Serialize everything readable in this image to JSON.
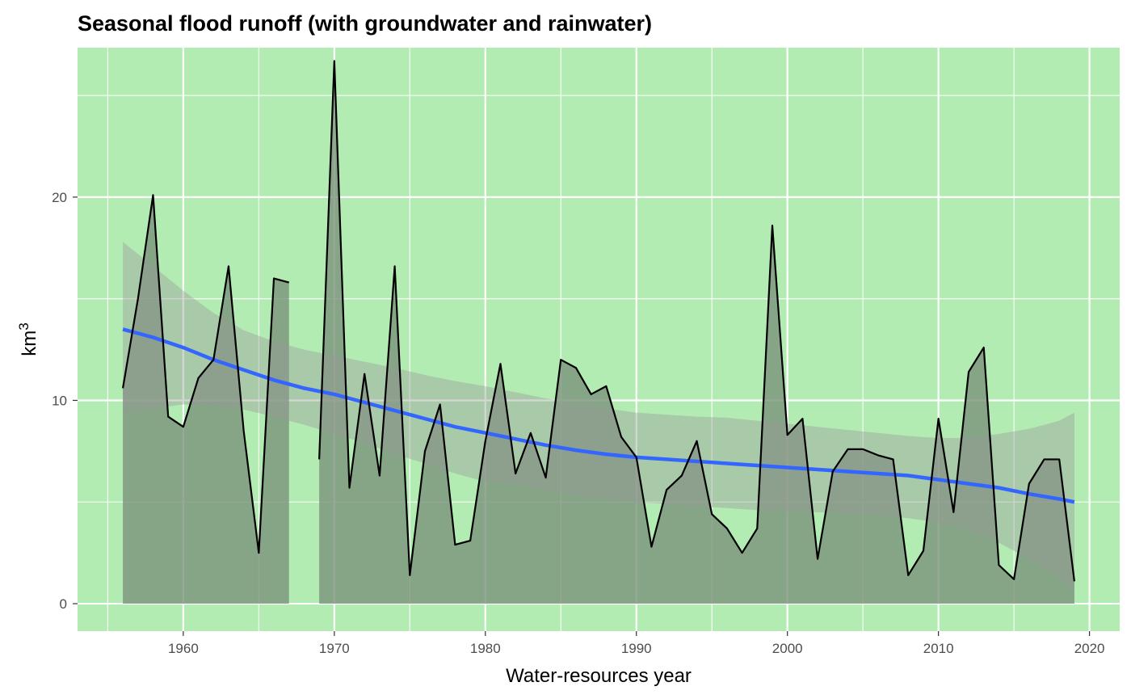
{
  "chart_data": {
    "type": "area",
    "title": "Seasonal flood runoff (with groundwater and rainwater)",
    "xlabel": "Water-resources year",
    "ylabel_base": "km",
    "ylabel_superscript": "3",
    "xlim": [
      1953,
      2022
    ],
    "ylim": [
      -1.35,
      27.35
    ],
    "x_ticks": [
      1960,
      1970,
      1980,
      1990,
      2000,
      2010,
      2020
    ],
    "y_ticks": [
      0,
      10,
      20
    ],
    "x_tick_labels": [
      "1960",
      "1970",
      "1980",
      "1990",
      "2000",
      "2010",
      "2020"
    ],
    "y_tick_labels": [
      "0",
      "10",
      "20"
    ],
    "grid": true,
    "legend": "none",
    "colors": {
      "panel_background": "#b3ecb3",
      "grid": "#ffffff",
      "area_fill": "#7a8f7a",
      "line": "#000000",
      "smooth_line": "#3366ff",
      "ribbon": "#999999",
      "tick": "#333333"
    },
    "series": [
      {
        "kind": "runoff",
        "x": [
          1956,
          1957,
          1958,
          1959,
          1960,
          1961,
          1962,
          1963,
          1964,
          1965,
          1966,
          1967,
          1968,
          1969,
          1970,
          1971,
          1972,
          1973,
          1974,
          1975,
          1976,
          1977,
          1978,
          1979,
          1980,
          1981,
          1982,
          1983,
          1984,
          1985,
          1986,
          1987,
          1988,
          1989,
          1990,
          1991,
          1992,
          1993,
          1994,
          1995,
          1996,
          1997,
          1998,
          1999,
          2000,
          2001,
          2002,
          2003,
          2004,
          2005,
          2006,
          2007,
          2008,
          2009,
          2010,
          2011,
          2012,
          2013,
          2014,
          2015,
          2016,
          2017,
          2018,
          2019
        ],
        "y": [
          10.6,
          15.0,
          20.1,
          9.2,
          8.7,
          11.1,
          12.0,
          16.6,
          8.5,
          2.5,
          16.0,
          15.8,
          null,
          7.1,
          26.7,
          5.7,
          11.3,
          6.3,
          16.6,
          1.4,
          7.5,
          9.8,
          2.9,
          3.1,
          8.0,
          11.8,
          6.4,
          8.4,
          6.2,
          12.0,
          11.6,
          10.3,
          10.7,
          8.2,
          7.2,
          2.8,
          5.6,
          6.3,
          8.0,
          4.4,
          3.7,
          2.5,
          3.7,
          18.6,
          8.3,
          9.1,
          2.2,
          6.5,
          7.6,
          7.6,
          7.3,
          7.1,
          1.4,
          2.6,
          9.1,
          4.5,
          11.4,
          12.6,
          1.9,
          1.2,
          5.9,
          7.1,
          7.1,
          1.1
        ]
      },
      {
        "kind": "smooth",
        "x": [
          1956,
          1958,
          1960,
          1962,
          1964,
          1966,
          1968,
          1970,
          1972,
          1974,
          1976,
          1978,
          1980,
          1982,
          1984,
          1986,
          1988,
          1990,
          1992,
          1994,
          1996,
          1998,
          2000,
          2002,
          2004,
          2006,
          2008,
          2010,
          2012,
          2014,
          2016,
          2018,
          2019
        ],
        "y": [
          13.5,
          13.1,
          12.6,
          12.0,
          11.5,
          11.0,
          10.6,
          10.3,
          9.9,
          9.5,
          9.1,
          8.7,
          8.4,
          8.1,
          7.8,
          7.55,
          7.35,
          7.2,
          7.1,
          7.0,
          6.9,
          6.8,
          6.7,
          6.6,
          6.5,
          6.4,
          6.3,
          6.1,
          5.9,
          5.7,
          5.4,
          5.15,
          5.0
        ],
        "lower": [
          9.3,
          9.6,
          9.8,
          9.75,
          9.55,
          9.2,
          8.8,
          8.35,
          7.9,
          7.35,
          6.9,
          6.4,
          6.0,
          5.85,
          5.6,
          5.3,
          5.15,
          5.0,
          4.9,
          4.8,
          4.7,
          4.6,
          4.55,
          4.5,
          4.45,
          4.35,
          4.2,
          4.0,
          3.6,
          3.0,
          2.2,
          1.3,
          0.7
        ],
        "upper": [
          17.8,
          16.6,
          15.4,
          14.3,
          13.45,
          12.9,
          12.5,
          12.2,
          11.9,
          11.6,
          11.25,
          10.95,
          10.7,
          10.4,
          10.1,
          9.85,
          9.6,
          9.4,
          9.3,
          9.2,
          9.15,
          9.0,
          8.85,
          8.7,
          8.55,
          8.4,
          8.25,
          8.15,
          8.15,
          8.35,
          8.6,
          9.0,
          9.4
        ]
      }
    ]
  }
}
